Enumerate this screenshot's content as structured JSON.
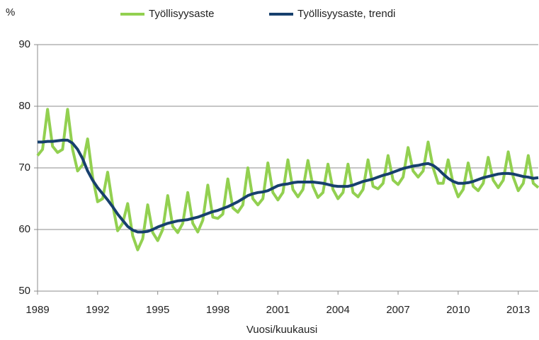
{
  "chart_data": {
    "type": "line",
    "y_unit": "%",
    "x_label": "Vuosi/kuukausi",
    "xlim": [
      1989,
      2014
    ],
    "xticks": [
      1989,
      1992,
      1995,
      1998,
      2001,
      2004,
      2007,
      2010,
      2013
    ],
    "ylim": [
      50,
      90
    ],
    "yticks": [
      50,
      60,
      70,
      80,
      90
    ],
    "grid": true,
    "legend": "top",
    "x": [
      1989,
      1989.25,
      1989.5,
      1989.75,
      1990,
      1990.25,
      1990.5,
      1990.75,
      1991,
      1991.25,
      1991.5,
      1991.75,
      1992,
      1992.25,
      1992.5,
      1992.75,
      1993,
      1993.25,
      1993.5,
      1993.75,
      1994,
      1994.25,
      1994.5,
      1994.75,
      1995,
      1995.25,
      1995.5,
      1995.75,
      1996,
      1996.25,
      1996.5,
      1996.75,
      1997,
      1997.25,
      1997.5,
      1997.75,
      1998,
      1998.25,
      1998.5,
      1998.75,
      1999,
      1999.25,
      1999.5,
      1999.75,
      2000,
      2000.25,
      2000.5,
      2000.75,
      2001,
      2001.25,
      2001.5,
      2001.75,
      2002,
      2002.25,
      2002.5,
      2002.75,
      2003,
      2003.25,
      2003.5,
      2003.75,
      2004,
      2004.25,
      2004.5,
      2004.75,
      2005,
      2005.25,
      2005.5,
      2005.75,
      2006,
      2006.25,
      2006.5,
      2006.75,
      2007,
      2007.25,
      2007.5,
      2007.75,
      2008,
      2008.25,
      2008.5,
      2008.75,
      2009,
      2009.25,
      2009.5,
      2009.75,
      2010,
      2010.25,
      2010.5,
      2010.75,
      2011,
      2011.25,
      2011.5,
      2011.75,
      2012,
      2012.25,
      2012.5,
      2012.75,
      2013,
      2013.25,
      2013.5,
      2013.75,
      2014
    ],
    "series": [
      {
        "name": "Työllisyysaste",
        "color": "#92d050",
        "width": 4,
        "values": [
          72.0,
          73.0,
          79.5,
          73.5,
          72.5,
          73.0,
          79.5,
          73.0,
          69.5,
          70.5,
          74.7,
          68.5,
          64.5,
          65.0,
          69.3,
          64.0,
          59.8,
          61.0,
          64.2,
          59.0,
          56.7,
          58.5,
          64.0,
          59.5,
          58.2,
          60.0,
          65.5,
          60.5,
          59.5,
          61.0,
          66.0,
          61.0,
          59.6,
          61.5,
          67.2,
          62.0,
          61.8,
          62.5,
          68.2,
          63.5,
          62.8,
          64.0,
          70.0,
          65.0,
          64.0,
          65.0,
          70.8,
          66.0,
          64.8,
          66.0,
          71.3,
          66.5,
          65.3,
          66.5,
          71.2,
          67.0,
          65.2,
          66.0,
          70.6,
          66.5,
          65.0,
          66.0,
          70.6,
          66.0,
          65.3,
          66.5,
          71.3,
          67.0,
          66.6,
          67.5,
          72.0,
          68.0,
          67.3,
          68.5,
          73.3,
          69.5,
          68.5,
          69.5,
          74.2,
          70.0,
          67.5,
          67.5,
          71.3,
          67.5,
          65.3,
          66.5,
          70.8,
          67.0,
          66.3,
          67.5,
          71.7,
          68.0,
          66.8,
          68.0,
          72.6,
          68.5,
          66.3,
          67.5,
          72.0,
          67.5,
          66.8
        ]
      },
      {
        "name": "Työllisyysaste, trendi",
        "color": "#17406d",
        "width": 4,
        "values": [
          74.2,
          74.2,
          74.3,
          74.3,
          74.4,
          74.5,
          74.5,
          74.0,
          73.0,
          71.5,
          69.5,
          68.0,
          66.8,
          65.8,
          64.8,
          63.7,
          62.5,
          61.5,
          60.5,
          59.9,
          59.6,
          59.6,
          59.7,
          60.0,
          60.4,
          60.7,
          61.0,
          61.2,
          61.4,
          61.5,
          61.6,
          61.8,
          62.0,
          62.3,
          62.6,
          62.9,
          63.1,
          63.4,
          63.7,
          64.1,
          64.5,
          65.0,
          65.5,
          65.8,
          66.0,
          66.1,
          66.3,
          66.7,
          67.1,
          67.3,
          67.4,
          67.6,
          67.7,
          67.7,
          67.7,
          67.7,
          67.6,
          67.5,
          67.3,
          67.1,
          67.0,
          67.0,
          67.0,
          67.2,
          67.5,
          67.8,
          68.0,
          68.2,
          68.5,
          68.8,
          69.0,
          69.3,
          69.6,
          69.9,
          70.1,
          70.3,
          70.4,
          70.6,
          70.7,
          70.4,
          69.8,
          69.0,
          68.3,
          67.8,
          67.5,
          67.5,
          67.6,
          67.8,
          68.1,
          68.4,
          68.6,
          68.8,
          69.0,
          69.1,
          69.1,
          69.0,
          68.8,
          68.6,
          68.5,
          68.3,
          68.4
        ]
      }
    ]
  }
}
